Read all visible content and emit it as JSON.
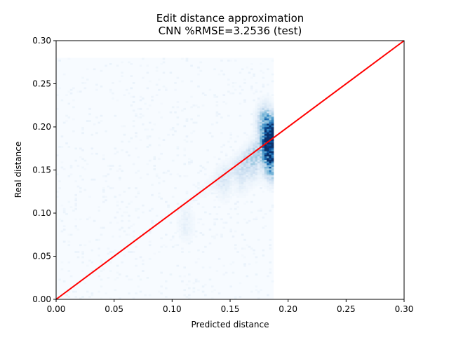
{
  "chart_data": {
    "type": "heatmap",
    "title": "Edit distance approximation",
    "subtitle": "CNN %RMSE=3.2536 (test)",
    "xlabel": "Predicted distance",
    "ylabel": "Real distance",
    "xlim": [
      0.0,
      0.3
    ],
    "ylim": [
      0.0,
      0.3
    ],
    "x_ticks": [
      "0.00",
      "0.05",
      "0.10",
      "0.15",
      "0.20",
      "0.25",
      "0.30"
    ],
    "y_ticks": [
      "0.00",
      "0.05",
      "0.10",
      "0.15",
      "0.20",
      "0.25",
      "0.30"
    ],
    "x_tick_values": [
      0.0,
      0.05,
      0.1,
      0.15,
      0.2,
      0.25,
      0.3
    ],
    "y_tick_values": [
      0.0,
      0.05,
      0.1,
      0.15,
      0.2,
      0.25,
      0.3
    ],
    "grid": false,
    "colormap": "Blues",
    "histogram_extent": {
      "x": [
        0.0,
        0.1875
      ],
      "y": [
        0.0,
        0.28
      ]
    },
    "histogram_bins": {
      "x": 94,
      "y": 140
    },
    "density_hotspots": [
      {
        "x": 0.186,
        "y": 0.19,
        "density": 1.0
      },
      {
        "x": 0.183,
        "y": 0.175,
        "density": 0.6
      },
      {
        "x": 0.18,
        "y": 0.205,
        "density": 0.45
      },
      {
        "x": 0.186,
        "y": 0.158,
        "density": 0.55
      },
      {
        "x": 0.17,
        "y": 0.16,
        "density": 0.25
      },
      {
        "x": 0.16,
        "y": 0.145,
        "density": 0.15
      },
      {
        "x": 0.145,
        "y": 0.135,
        "density": 0.1
      },
      {
        "x": 0.112,
        "y": 0.088,
        "density": 0.08
      }
    ],
    "reference_line": {
      "x": [
        0.0,
        0.3
      ],
      "y": [
        0.0,
        0.3
      ],
      "color": "#ff0000"
    }
  }
}
